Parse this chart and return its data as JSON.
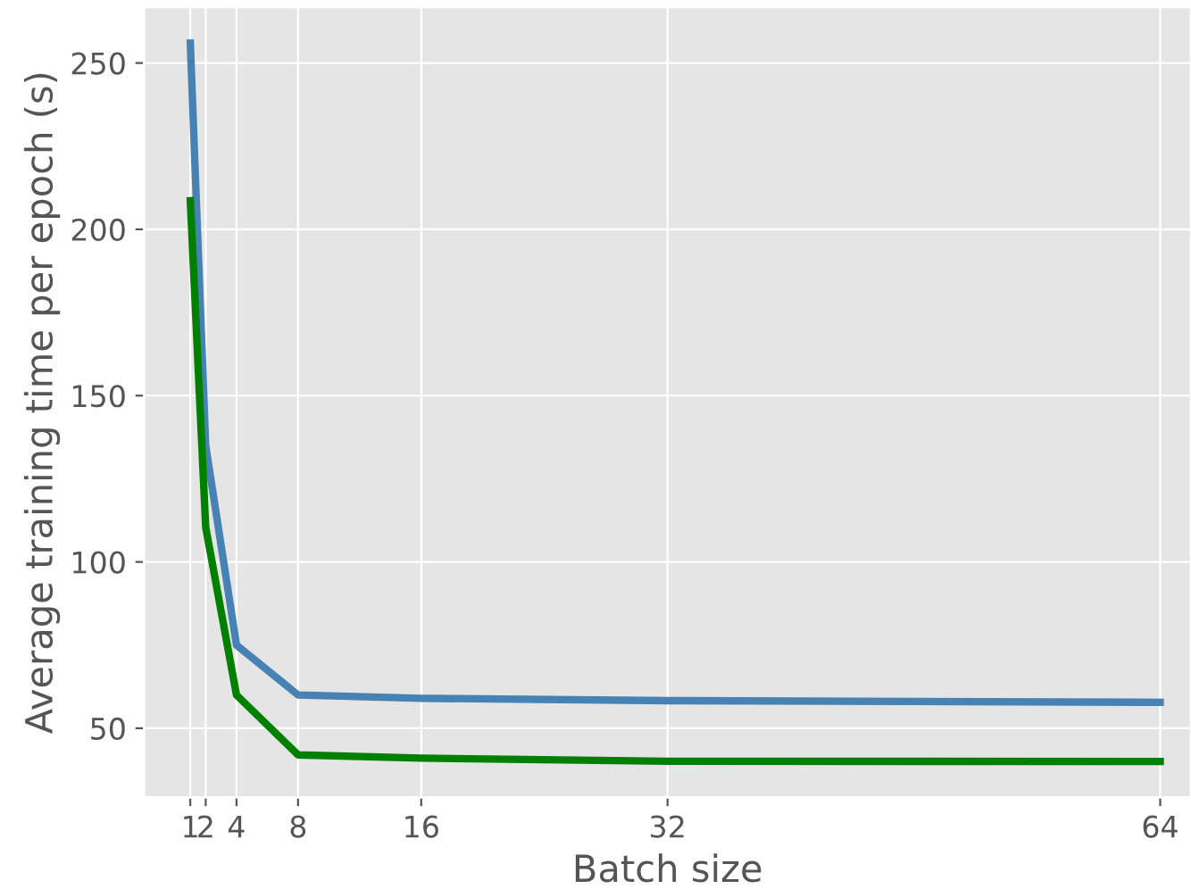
{
  "chart_data": {
    "type": "line",
    "xlabel": "Batch size",
    "ylabel": "Average training time per epoch (s)",
    "x": [
      1,
      2,
      4,
      8,
      16,
      32,
      64
    ],
    "series": [
      {
        "color": "#4682b4",
        "values": [
          256,
          135,
          75,
          60,
          59,
          58.3,
          57.8
        ]
      },
      {
        "color": "#008000",
        "values": [
          208.6,
          110.4,
          60,
          42,
          41,
          40.1,
          40
        ]
      }
    ],
    "xlim": [
      -2,
      66
    ],
    "ylim": [
      29.2,
      266.8
    ],
    "xticks": [
      1,
      2,
      4,
      8,
      16,
      32,
      64
    ],
    "yticks": [
      50,
      100,
      150,
      200,
      250
    ],
    "grid": true,
    "line_style": "solid",
    "marker": "none"
  }
}
